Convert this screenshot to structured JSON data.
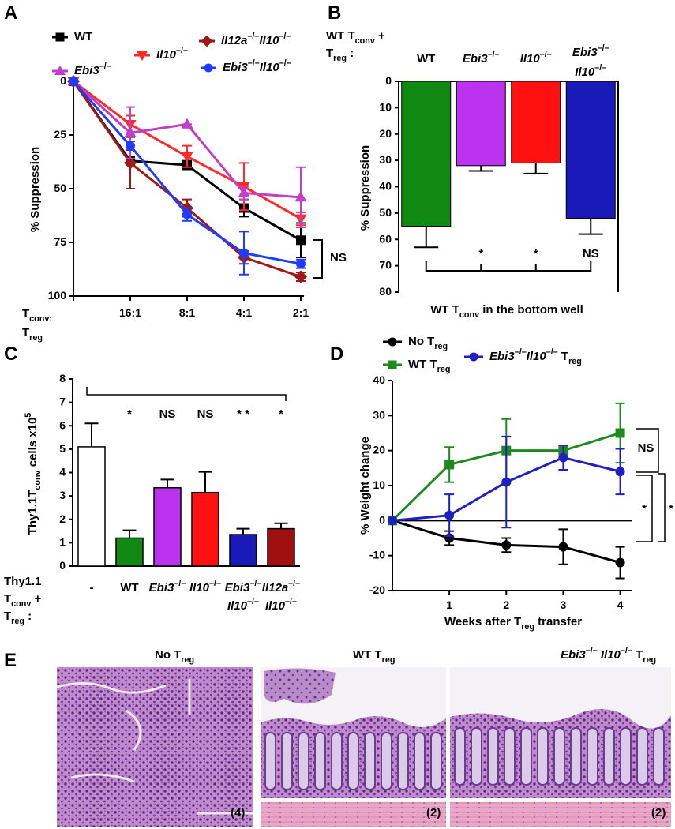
{
  "chart_data": [
    {
      "panel_label": "A",
      "type": "line",
      "categories": [
        null,
        "16:1",
        "8:1",
        "4:1",
        "2:1"
      ],
      "xlabel": [
        [
          "T",
          {
            "t": "conv:",
            "s": "sub"
          }
        ],
        [
          "T",
          {
            "t": "reg",
            "s": "sub"
          }
        ]
      ],
      "ylabel": "% Suppression",
      "ylim": [
        0,
        100
      ],
      "y_inverted": true,
      "yticks": [
        0,
        25,
        50,
        75,
        100
      ],
      "series": [
        {
          "name": "WT",
          "color": "#000000",
          "marker": "square",
          "values": [
            0,
            37,
            39,
            59,
            74
          ],
          "errors": [
            null,
            2,
            2,
            4,
            8
          ]
        },
        {
          "name": [
            {
              "t": "Il10",
              "s": "i"
            },
            {
              "t": "–/–",
              "s": "sup"
            }
          ],
          "color": "#ff2a2a",
          "marker": "triangle-down",
          "values": [
            0,
            20,
            35,
            49,
            64
          ],
          "errors": [
            null,
            4,
            5,
            11,
            3
          ]
        },
        {
          "name": [
            {
              "t": "Il12a",
              "s": "i"
            },
            {
              "t": "–/–",
              "s": "sup"
            },
            {
              "t": "Il10",
              "s": "i"
            },
            {
              "t": "–/–",
              "s": "sup"
            }
          ],
          "color": "#9e1a1a",
          "marker": "diamond",
          "values": [
            0,
            38,
            59,
            82,
            91
          ],
          "errors": [
            null,
            12,
            4,
            3,
            2
          ]
        },
        {
          "name": [
            {
              "t": "Ebi3",
              "s": "i"
            },
            {
              "t": "–/–",
              "s": "sup"
            }
          ],
          "color": "#c13ec9",
          "marker": "triangle-up",
          "values": [
            0,
            24,
            20,
            52,
            54
          ],
          "errors": [
            null,
            12,
            0,
            3,
            14
          ]
        },
        {
          "name": [
            {
              "t": "Ebi3",
              "s": "i"
            },
            {
              "t": "–/–",
              "s": "sup"
            },
            {
              "t": "Il10",
              "s": "i"
            },
            {
              "t": "–/–",
              "s": "sup"
            }
          ],
          "color": "#1e3cff",
          "marker": "circle",
          "values": [
            0,
            30,
            62,
            80,
            85
          ],
          "errors": [
            null,
            2,
            3,
            10,
            2
          ]
        }
      ],
      "annotations": [
        "NS"
      ]
    },
    {
      "panel_label": "B",
      "type": "bar",
      "title": [
        [
          "WT T",
          {
            "t": "conv",
            "s": "sub"
          },
          " +"
        ],
        [
          "T",
          {
            "t": "reg",
            "s": "sub"
          },
          " :"
        ]
      ],
      "categories": [
        "WT",
        [
          {
            "t": "Ebi3",
            "s": "i"
          },
          {
            "t": "–/–",
            "s": "sup"
          }
        ],
        [
          {
            "t": "Il10",
            "s": "i"
          },
          {
            "t": "–/–",
            "s": "sup"
          }
        ],
        [
          [
            {
              "t": "Ebi3",
              "s": "i"
            },
            {
              "t": "–/–",
              "s": "sup"
            }
          ],
          [
            {
              "t": "Il10",
              "s": "i"
            },
            {
              "t": "–/–",
              "s": "sup"
            }
          ]
        ]
      ],
      "values": [
        55,
        32,
        31,
        52
      ],
      "errors": [
        8,
        2,
        4,
        6
      ],
      "colors": [
        "#118811",
        "#bb33ee",
        "#ff1111",
        "#1a1ab8"
      ],
      "xlabel": [
        "WT T",
        {
          "t": "conv",
          "s": "sub"
        },
        " in the bottom well"
      ],
      "ylabel": "% Suppression",
      "ylim": [
        0,
        80
      ],
      "y_inverted": true,
      "yticks": [
        0,
        10,
        20,
        30,
        40,
        50,
        60,
        70,
        80
      ],
      "annotations": [
        "*",
        "*",
        "NS"
      ]
    },
    {
      "panel_label": "C",
      "type": "bar",
      "category_caption": [
        [
          "Thy1.1"
        ],
        [
          "T",
          {
            "t": "conv",
            "s": "sub"
          },
          " +"
        ],
        [
          "T",
          {
            "t": "reg",
            "s": "sub"
          },
          " :"
        ]
      ],
      "categories": [
        "-",
        "WT",
        [
          {
            "t": "Ebi3",
            "s": "i"
          },
          {
            "t": "–/–",
            "s": "sup"
          }
        ],
        [
          {
            "t": "Il10",
            "s": "i"
          },
          {
            "t": "–/–",
            "s": "sup"
          }
        ],
        [
          [
            {
              "t": "Ebi3",
              "s": "i"
            },
            {
              "t": "–/–",
              "s": "sup"
            }
          ],
          [
            {
              "t": "Il10",
              "s": "i"
            },
            {
              "t": "–/–",
              "s": "sup"
            }
          ]
        ],
        [
          [
            {
              "t": "Il12a",
              "s": "i"
            },
            {
              "t": "–/–",
              "s": "sup"
            }
          ],
          [
            {
              "t": "Il10",
              "s": "i"
            },
            {
              "t": "–/–",
              "s": "sup"
            }
          ]
        ]
      ],
      "values": [
        5.1,
        1.2,
        3.35,
        3.15,
        1.35,
        1.6
      ],
      "errors": [
        1.0,
        0.33,
        0.35,
        0.88,
        0.25,
        0.23
      ],
      "colors": [
        "#ffffff",
        "#118811",
        "#bb33ee",
        "#ff1111",
        "#1a1ab8",
        "#a01010"
      ],
      "ylabel": [
        "Thy1.1T",
        {
          "t": "conv",
          "s": "sub"
        },
        " cells x10",
        {
          "t": "5",
          "s": "sup"
        }
      ],
      "ylim": [
        0,
        8
      ],
      "yticks": [
        0,
        1,
        2,
        3,
        4,
        5,
        6,
        7,
        8
      ],
      "annotations": [
        "*",
        "NS",
        "NS",
        "* *",
        "*"
      ]
    },
    {
      "panel_label": "D",
      "type": "line",
      "x": [
        0,
        1,
        2,
        3,
        4
      ],
      "xlim": [
        0,
        4.2
      ],
      "xticks": [
        1,
        2,
        3,
        4
      ],
      "xlabel": [
        "Weeks after T",
        {
          "t": "reg",
          "s": "sub"
        },
        " transfer"
      ],
      "ylabel": "% Weight change",
      "ylim": [
        -20,
        40
      ],
      "yticks": [
        -20,
        -10,
        0,
        10,
        20,
        30,
        40
      ],
      "series": [
        {
          "name": [
            "No T",
            {
              "t": "reg",
              "s": "sub"
            }
          ],
          "color": "#000000",
          "marker": "circle",
          "values": [
            0,
            -5,
            -7,
            -7.5,
            -12
          ],
          "errors": [
            null,
            2,
            2,
            5,
            4.5
          ]
        },
        {
          "name": [
            "WT T",
            {
              "t": "reg",
              "s": "sub"
            }
          ],
          "color": "#1e8a1e",
          "marker": "square",
          "values": [
            0,
            16,
            20,
            20,
            25
          ],
          "errors": [
            null,
            5,
            9,
            1,
            8.5
          ]
        },
        {
          "name": [
            {
              "t": "Ebi3",
              "s": "i"
            },
            {
              "t": "–/–",
              "s": "sup"
            },
            {
              "t": "Il10",
              "s": "i"
            },
            {
              "t": "–/–",
              "s": "sup"
            },
            " T",
            {
              "t": "reg",
              "s": "sub"
            }
          ],
          "color": "#2020c0",
          "marker": "circle",
          "values": [
            0,
            1.5,
            11,
            18,
            14
          ],
          "errors": [
            null,
            6,
            13,
            3.5,
            6.5
          ]
        }
      ],
      "annotations": [
        "NS",
        "*",
        "*"
      ]
    }
  ],
  "panel_e": {
    "label": "E",
    "images": [
      {
        "title": [
          "No T",
          {
            "t": "reg",
            "s": "sub"
          }
        ],
        "count": "(4)"
      },
      {
        "title": [
          "WT T",
          {
            "t": "reg",
            "s": "sub"
          }
        ],
        "count": "(2)"
      },
      {
        "title": [
          {
            "t": "Ebi3",
            "s": "i"
          },
          {
            "t": "–/–",
            "s": "sup"
          },
          " ",
          {
            "t": "Il10",
            "s": "i"
          },
          {
            "t": "–/–",
            "s": "sup"
          },
          " T",
          {
            "t": "reg",
            "s": "sub"
          }
        ],
        "count": "(2)"
      }
    ]
  }
}
